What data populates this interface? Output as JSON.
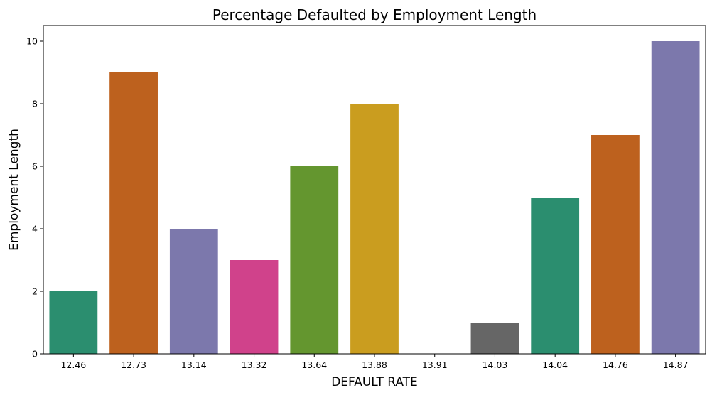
{
  "chart_data": {
    "type": "bar",
    "title": "Percentage Defaulted by Employment Length",
    "xlabel": "DEFAULT RATE",
    "ylabel": "Employment Length",
    "categories": [
      "12.46",
      "12.73",
      "13.14",
      "13.32",
      "13.64",
      "13.88",
      "13.91",
      "14.03",
      "14.04",
      "14.76",
      "14.87"
    ],
    "values": [
      2,
      9,
      4,
      3,
      6,
      8,
      0,
      1,
      5,
      7,
      10
    ],
    "colors": [
      "#2b8e6f",
      "#bd611e",
      "#7c78ac",
      "#d0428b",
      "#64962f",
      "#ca9d1f",
      "#9c7a3a",
      "#666666",
      "#2b8e6f",
      "#bd611e",
      "#7c78ac"
    ],
    "ylim": [
      0,
      10.5
    ],
    "yticks": [
      0,
      2,
      4,
      6,
      8,
      10
    ],
    "grid": false,
    "legend": "none"
  }
}
